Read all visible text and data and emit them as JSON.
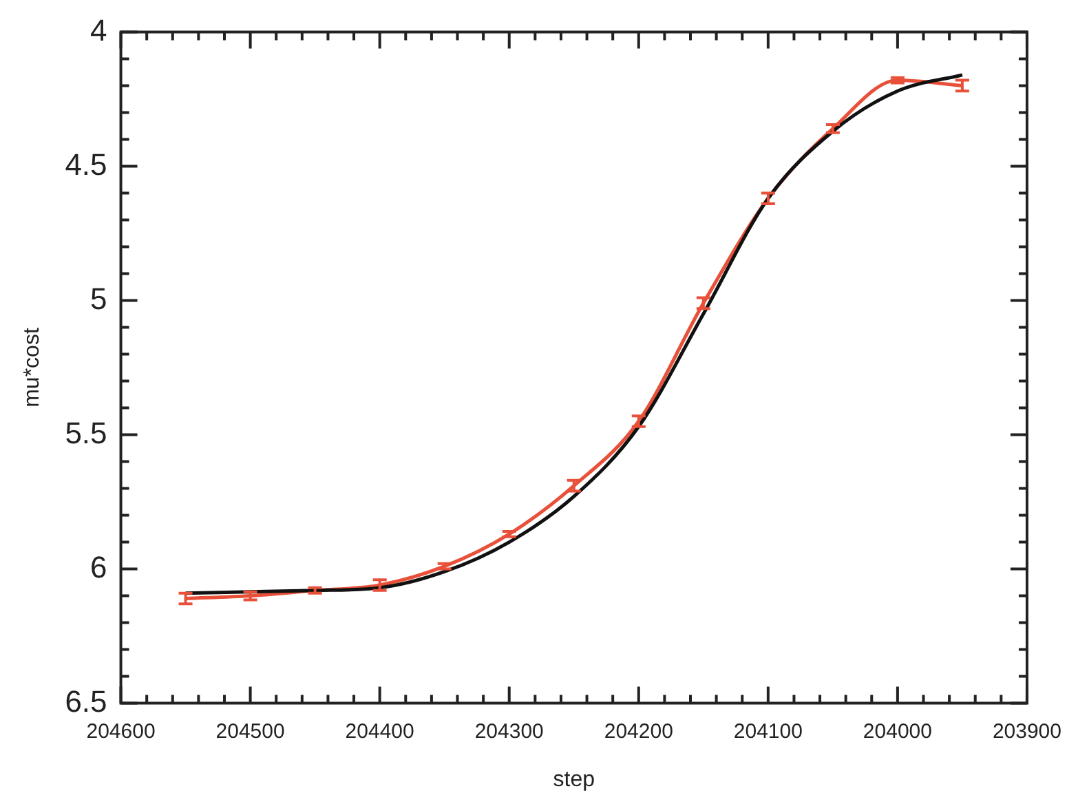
{
  "chart_data": {
    "type": "line",
    "xlabel": "step",
    "ylabel": "mu*cost",
    "x": [
      204550,
      204500,
      204450,
      204400,
      204350,
      204300,
      204250,
      204200,
      204150,
      204100,
      204050,
      204000,
      203950
    ],
    "series": [
      {
        "color": "#111111",
        "values": [
          6.09,
          6.085,
          6.08,
          6.07,
          6.01,
          5.9,
          5.73,
          5.47,
          5.05,
          4.62,
          4.37,
          4.22,
          4.16
        ]
      },
      {
        "color": "#e8503a",
        "values": [
          6.11,
          6.1,
          6.08,
          6.06,
          5.99,
          5.87,
          5.69,
          5.45,
          5.01,
          4.62,
          4.36,
          4.18,
          4.2
        ],
        "errors": [
          0.02,
          0.015,
          0.01,
          0.02,
          0.01,
          0.01,
          0.02,
          0.02,
          0.02,
          0.02,
          0.015,
          0.01,
          0.02
        ]
      }
    ],
    "xlim": [
      204600,
      203900
    ],
    "xticks": [
      204600,
      {
        "value": 204580,
        "label": null
      },
      {
        "value": 204560,
        "label": null
      },
      {
        "value": 204540,
        "label": null
      },
      {
        "value": 204520,
        "label": null
      },
      204500,
      {
        "value": 204480,
        "label": null
      },
      {
        "value": 204460,
        "label": null
      },
      {
        "value": 204440,
        "label": null
      },
      {
        "value": 204420,
        "label": null
      },
      204400,
      {
        "value": 204380,
        "label": null
      },
      {
        "value": 204360,
        "label": null
      },
      {
        "value": 204340,
        "label": null
      },
      {
        "value": 204320,
        "label": null
      },
      204300,
      {
        "value": 204280,
        "label": null
      },
      {
        "value": 204260,
        "label": null
      },
      {
        "value": 204240,
        "label": null
      },
      {
        "value": 204220,
        "label": null
      },
      204200,
      {
        "value": 204180,
        "label": null
      },
      {
        "value": 204160,
        "label": null
      },
      {
        "value": 204140,
        "label": null
      },
      {
        "value": 204120,
        "label": null
      },
      204100,
      {
        "value": 204080,
        "label": null
      },
      {
        "value": 204060,
        "label": null
      },
      {
        "value": 204040,
        "label": null
      },
      {
        "value": 204020,
        "label": null
      },
      204000,
      {
        "value": 203980,
        "label": null
      },
      {
        "value": 203960,
        "label": null
      },
      {
        "value": 203940,
        "label": null
      },
      {
        "value": 203920,
        "label": null
      },
      203900
    ],
    "ylim": [
      6.5,
      4
    ],
    "yticks": [
      4,
      {
        "value": 4.1,
        "label": null
      },
      {
        "value": 4.2,
        "label": null
      },
      {
        "value": 4.3,
        "label": null
      },
      {
        "value": 4.4,
        "label": null
      },
      4.5,
      {
        "value": 4.6,
        "label": null
      },
      {
        "value": 4.7,
        "label": null
      },
      {
        "value": 4.8,
        "label": null
      },
      {
        "value": 4.9,
        "label": null
      },
      5,
      {
        "value": 5.1,
        "label": null
      },
      {
        "value": 5.2,
        "label": null
      },
      {
        "value": 5.3,
        "label": null
      },
      {
        "value": 5.4,
        "label": null
      },
      5.5,
      {
        "value": 5.6,
        "label": null
      },
      {
        "value": 5.7,
        "label": null
      },
      {
        "value": 5.8,
        "label": null
      },
      {
        "value": 5.9,
        "label": null
      },
      6,
      {
        "value": 6.1,
        "label": null
      },
      {
        "value": 6.2,
        "label": null
      },
      {
        "value": 6.3,
        "label": null
      },
      {
        "value": 6.4,
        "label": null
      },
      6.5
    ],
    "line_style": "solid",
    "grid": false,
    "legend": false
  }
}
